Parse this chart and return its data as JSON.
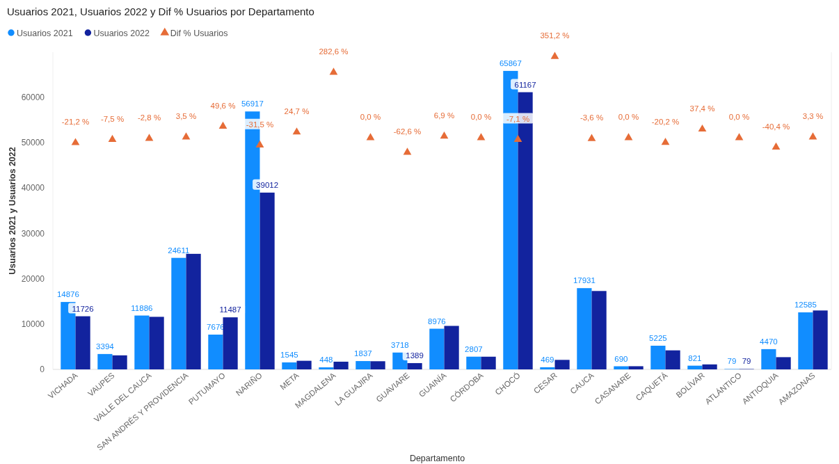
{
  "chart_data": {
    "type": "bar",
    "title": "Usuarios 2021, Usuarios 2022 y Dif % Usuarios por Departamento",
    "xlabel": "Departamento",
    "ylabel": "Usuarios 2021 y Usuarios 2022",
    "categories": [
      "VICHADA",
      "VAUPES",
      "VALLE DEL CAUCA",
      "SAN ANDRÉS Y PROVIDENCIA",
      "PUTUMAYO",
      "NARIÑO",
      "META",
      "MAGDALENA",
      "LA GUAJIRA",
      "GUAVIARE",
      "GUAINÍA",
      "CÓRDOBA",
      "CHOCÓ",
      "CESAR",
      "CAUCA",
      "CASANARE",
      "CAQUETÁ",
      "BOLÍVAR",
      "ATLÁNTICO",
      "ANTIOQUIA",
      "AMAZONAS"
    ],
    "series": [
      {
        "name": "Usuarios 2021",
        "color": "#118dff",
        "values": [
          14876,
          3394,
          11886,
          24611,
          7676,
          56917,
          1545,
          448,
          1837,
          3718,
          8976,
          2807,
          65867,
          469,
          17931,
          690,
          5225,
          821,
          79,
          4470,
          12585
        ],
        "value_labels": [
          "14876",
          "3394",
          "11886",
          "24611",
          "7676",
          "56917",
          "1545",
          "448",
          "1837",
          "3718",
          "8976",
          "2807",
          "65867",
          "469",
          "17931",
          "690",
          "5225",
          "821",
          "79",
          "4470",
          "12585"
        ]
      },
      {
        "name": "Usuarios 2022",
        "color": "#12239e",
        "values": [
          11726,
          3100,
          11600,
          25500,
          11487,
          39012,
          1900,
          1700,
          1800,
          1389,
          9600,
          2800,
          61167,
          2100,
          17300,
          700,
          4200,
          1100,
          79,
          2700,
          13000
        ],
        "value_labels": [
          "11726",
          null,
          null,
          null,
          "11487",
          "39012",
          null,
          null,
          null,
          "1389",
          null,
          null,
          "61167",
          null,
          null,
          null,
          null,
          null,
          "79",
          null,
          null
        ]
      },
      {
        "name": "Dif % Usuarios",
        "type": "scatter",
        "axis": "y2",
        "marker": "triangle",
        "color": "#e66c37",
        "values": [
          -21.2,
          -7.5,
          -2.8,
          3.5,
          49.6,
          -31.5,
          24.7,
          282.6,
          0,
          -62.6,
          6.9,
          0,
          -7.1,
          351.2,
          -3.6,
          0,
          -20.2,
          37.4,
          0,
          -40.4,
          3.3
        ],
        "value_labels": [
          "-21,2 %",
          "-7,5 %",
          "-2,8 %",
          "3,5 %",
          "49,6 %",
          "-31,5 %",
          "24,7 %",
          "282,6 %",
          "0,0 %",
          "-62,6 %",
          "6,9 %",
          "0,0 %",
          "-7,1 %",
          "351,2 %",
          "-3,6 %",
          "0,0 %",
          "-20,2 %",
          "37,4 %",
          "0,0 %",
          "-40,4 %",
          "3,3 %"
        ]
      }
    ],
    "ylim": [
      0,
      70000
    ],
    "yticks": [
      0,
      10000,
      20000,
      30000,
      40000,
      50000,
      60000
    ],
    "y2lim": [
      -1000,
      370
    ],
    "legend": "top left",
    "grid": false
  }
}
